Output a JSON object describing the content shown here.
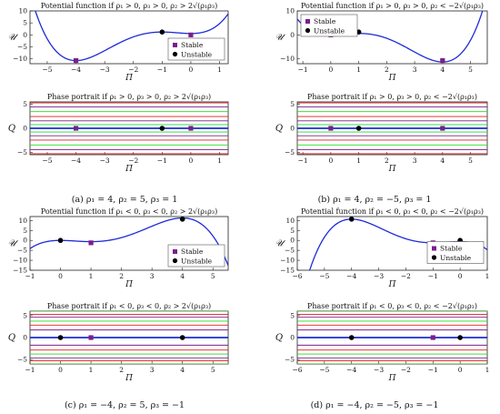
{
  "colors": {
    "potential": "#1f2bd6",
    "stable": "#7a1f8c",
    "unstable": "#000000",
    "orbit_green": "#22dd22",
    "orbit_red": "#e41b1b",
    "orbit_purple": "#7a1f8c",
    "separatrix": "#1f2bd6",
    "outer_dark": "#8b0000"
  },
  "legend": {
    "stable": "Stable",
    "unstable": "Unstable"
  },
  "captions": {
    "a": "(a) ρ₁ = 4, ρ₂ = 5, ρ₃ = 1",
    "b": "(b) ρ₁ = 4, ρ₂ = −5, ρ₃ = 1",
    "c": "(c) ρ₁ = −4, ρ₂ = 5, ρ₃ = −1",
    "d": "(d) ρ₁ = −4, ρ₂ = −5, ρ₃ = −1"
  },
  "chart_data": [
    {
      "id": "a-potential",
      "type": "line",
      "title": "Potential function if ρ₁ > 0, ρ₃ > 0, ρ₂ > 2√(ρ₁ρ₃)",
      "xlabel": "Π",
      "ylabel": "𝒰",
      "xlim": [
        -5.6,
        1.3
      ],
      "ylim": [
        -12,
        10
      ],
      "xticks": [
        -5,
        -4,
        -3,
        -2,
        -1,
        0,
        1
      ],
      "yticks": [
        -10,
        -5,
        0,
        5,
        10
      ],
      "coeffs": [
        1,
        4,
        2.5
      ],
      "stable": [
        [
          -4,
          -10.7
        ],
        [
          0,
          0
        ]
      ],
      "unstable": [
        [
          -1,
          1.2
        ]
      ],
      "legend": "bottom-right"
    },
    {
      "id": "a-phase",
      "type": "line",
      "title": "Phase portrait if ρ₁ > 0, ρ₃ > 0, ρ₂ > 2√(ρ₁ρ₃)",
      "xlabel": "Π",
      "ylabel": "Q",
      "xlim": [
        -5.6,
        1.3
      ],
      "ylim": [
        -5.5,
        5.5
      ],
      "xticks": [
        -5,
        -4,
        -3,
        -2,
        -1,
        0,
        1
      ],
      "yticks": [
        -5,
        0,
        5
      ],
      "coeffs": [
        1,
        4,
        2.5
      ],
      "stable": [
        [
          -4,
          0
        ],
        [
          0,
          0
        ]
      ],
      "unstable": [
        [
          -1,
          0
        ]
      ],
      "levels": [
        -10,
        -8,
        -6,
        -3,
        0.3,
        1.2,
        3,
        6,
        10,
        14,
        18
      ],
      "separatrix": 1.2
    },
    {
      "id": "b-potential",
      "type": "line",
      "title": "Potential function if ρ₁ > 0, ρ₃ > 0, ρ₂ < −2√(ρ₁ρ₃)",
      "xlabel": "Π",
      "ylabel": "𝒰",
      "xlim": [
        -1.2,
        5.6
      ],
      "ylim": [
        -12,
        10
      ],
      "xticks": [
        -1,
        0,
        1,
        2,
        3,
        4,
        5
      ],
      "yticks": [
        -10,
        0,
        10
      ],
      "coeffs": [
        1,
        -4,
        2.5
      ],
      "stable": [
        [
          0,
          0
        ],
        [
          4,
          -10.7
        ]
      ],
      "unstable": [
        [
          1,
          1.2
        ]
      ],
      "legend": "top-left"
    },
    {
      "id": "b-phase",
      "type": "line",
      "title": "Phase portrait if ρ₁ > 0, ρ₃ > 0, ρ₂ < −2√(ρ₁ρ₃)",
      "xlabel": "Π",
      "ylabel": "Q",
      "xlim": [
        -1.2,
        5.6
      ],
      "ylim": [
        -5.5,
        5.5
      ],
      "xticks": [
        -1,
        0,
        1,
        2,
        3,
        4,
        5
      ],
      "yticks": [
        -5,
        0,
        5
      ],
      "coeffs": [
        1,
        -4,
        2.5
      ],
      "stable": [
        [
          0,
          0
        ],
        [
          4,
          0
        ]
      ],
      "unstable": [
        [
          1,
          0
        ]
      ],
      "levels": [
        -10,
        -8,
        -6,
        -3,
        0.3,
        1.2,
        3,
        6,
        10,
        14,
        18
      ],
      "separatrix": 1.2
    },
    {
      "id": "c-potential",
      "type": "line",
      "title": "Potential function if ρ₁ < 0, ρ₃ < 0, ρ₂ > 2√(ρ₁ρ₃)",
      "xlabel": "Π",
      "ylabel": "𝒰",
      "xlim": [
        -1,
        5.5
      ],
      "ylim": [
        -15,
        12
      ],
      "xticks": [
        -1,
        0,
        1,
        2,
        3,
        4,
        5
      ],
      "yticks": [
        -15,
        -10,
        -5,
        0,
        5,
        10
      ],
      "coeffs": [
        -1,
        4,
        -2.5
      ],
      "stable": [
        [
          1,
          -1.2
        ]
      ],
      "unstable": [
        [
          0,
          0
        ],
        [
          4,
          10.7
        ]
      ],
      "legend": "bottom-right"
    },
    {
      "id": "c-phase",
      "type": "line",
      "title": "Phase portrait if ρ₁ < 0, ρ₃ < 0, ρ₂ > 2√(ρ₁ρ₃)",
      "xlabel": "Π",
      "ylabel": "Q",
      "xlim": [
        -1,
        5.5
      ],
      "ylim": [
        -6,
        6
      ],
      "xticks": [
        -1,
        0,
        1,
        2,
        3,
        4,
        5
      ],
      "yticks": [
        -5,
        0,
        5
      ],
      "coeffs": [
        -1,
        4,
        -2.5
      ],
      "stable": [
        [
          1,
          0
        ]
      ],
      "unstable": [
        [
          0,
          0
        ],
        [
          4,
          0
        ]
      ],
      "levels": [
        -0.9,
        -0.5,
        1.5,
        4,
        7,
        10.7,
        14,
        18,
        22
      ],
      "separatrix": 0
    },
    {
      "id": "d-potential",
      "type": "line",
      "title": "Potential function if ρ₁ < 0, ρ₃ < 0, ρ₂ < −2√(ρ₁ρ₃)",
      "xlabel": "Π",
      "ylabel": "𝒰",
      "xlim": [
        -6,
        1
      ],
      "ylim": [
        -15,
        12
      ],
      "xticks": [
        -6,
        -5,
        -4,
        -3,
        -2,
        -1,
        0,
        1
      ],
      "yticks": [
        -15,
        -10,
        -5,
        0,
        5,
        10
      ],
      "coeffs": [
        -1,
        -4,
        -2.5
      ],
      "stable": [
        [
          -1,
          -1.2
        ]
      ],
      "unstable": [
        [
          -4,
          10.7
        ],
        [
          0,
          0
        ]
      ],
      "legend": "right"
    },
    {
      "id": "d-phase",
      "type": "line",
      "title": "Phase portrait if ρ₁ < 0, ρ₃ < 0, ρ₂ < −2√(ρ₁ρ₃)",
      "xlabel": "Π",
      "ylabel": "Q",
      "xlim": [
        -6,
        1
      ],
      "ylim": [
        -6,
        6
      ],
      "xticks": [
        -6,
        -5,
        -4,
        -3,
        -2,
        -1,
        0,
        1
      ],
      "yticks": [
        -5,
        0,
        5
      ],
      "coeffs": [
        -1,
        -4,
        -2.5
      ],
      "stable": [
        [
          -1,
          0
        ]
      ],
      "unstable": [
        [
          -4,
          0
        ],
        [
          0,
          0
        ]
      ],
      "levels": [
        -0.9,
        -0.5,
        1.5,
        4,
        7,
        10.7,
        14,
        18,
        22
      ],
      "separatrix": 0
    }
  ]
}
